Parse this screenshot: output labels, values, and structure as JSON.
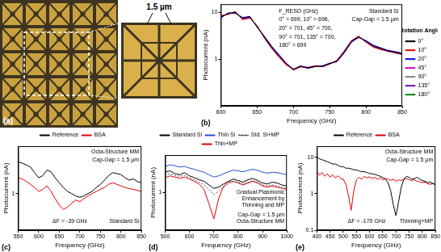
{
  "panel_a": {
    "label": "(a)",
    "scale_label": "1.5 µm"
  },
  "chart_data": [
    {
      "type": "line",
      "panel_label": "(b)",
      "x_label": "Frequency (GHz)",
      "y_label": "Photocurrent (nA)",
      "log": "y",
      "grid": false,
      "legend": "right",
      "legend_title": "Rotation Angle",
      "xlim": [
        600,
        850
      ],
      "xticks": [
        600,
        650,
        700,
        750,
        800,
        850
      ],
      "ylim": [
        0.1,
        15
      ],
      "yticks": [
        1,
        10
      ],
      "annotations": [
        "Standard Si",
        "Cap-Gap = 1.5 µm",
        "F_RESO (GHz)",
        "0° = 699, 10° = 696,",
        "20° = 701, 45° = 700,",
        "90° = 701, 135° = 700,",
        "180° = 699"
      ],
      "x": [
        600,
        610,
        620,
        630,
        640,
        650,
        660,
        670,
        680,
        690,
        700,
        710,
        720,
        730,
        740,
        750,
        760,
        770,
        780,
        790,
        800,
        810,
        820,
        830,
        840,
        850
      ],
      "series": [
        {
          "name": "0°",
          "color": "#000000",
          "values": [
            8,
            9.5,
            10,
            7.5,
            8,
            5,
            3,
            1.8,
            1.2,
            0.8,
            0.6,
            0.7,
            0.65,
            0.7,
            0.7,
            0.8,
            0.9,
            1.4,
            2.4,
            3.0,
            2.4,
            1.9,
            1.7,
            1.5,
            1.4,
            1.3
          ]
        },
        {
          "name": "10°",
          "color": "#e00000",
          "values": [
            8.5,
            9,
            10.5,
            7,
            7.5,
            5.2,
            2.8,
            1.7,
            1.1,
            0.75,
            0.62,
            0.68,
            0.66,
            0.72,
            0.68,
            0.78,
            0.95,
            1.5,
            2.5,
            3.1,
            2.3,
            1.8,
            1.6,
            1.5,
            1.35,
            1.25
          ]
        },
        {
          "name": "20°",
          "color": "#0000e0",
          "values": [
            7.5,
            9.8,
            9.5,
            7.8,
            8.2,
            4.8,
            3.1,
            1.9,
            1.25,
            0.82,
            0.6,
            0.72,
            0.63,
            0.69,
            0.72,
            0.82,
            0.88,
            1.35,
            2.3,
            2.9,
            2.5,
            2.0,
            1.75,
            1.55,
            1.45,
            1.35
          ]
        },
        {
          "name": "45°",
          "color": "#cc00cc",
          "values": [
            8.2,
            9.2,
            10.2,
            7.2,
            7.8,
            5.1,
            2.9,
            1.75,
            1.15,
            0.78,
            0.58,
            0.69,
            0.67,
            0.71,
            0.69,
            0.79,
            0.92,
            1.45,
            2.45,
            3.05,
            2.35,
            1.85,
            1.65,
            1.45,
            1.38,
            1.28
          ]
        },
        {
          "name": "90°",
          "color": "#808080",
          "values": [
            7.8,
            9.6,
            9.8,
            7.6,
            8.1,
            4.9,
            3.05,
            1.85,
            1.22,
            0.81,
            0.61,
            0.71,
            0.64,
            0.7,
            0.71,
            0.81,
            0.89,
            1.38,
            2.35,
            2.95,
            2.45,
            1.95,
            1.72,
            1.52,
            1.42,
            1.32
          ]
        },
        {
          "name": "135°",
          "color": "#6a0dad",
          "values": [
            8.3,
            9.3,
            10.1,
            7.3,
            7.9,
            5.0,
            2.95,
            1.78,
            1.18,
            0.79,
            0.59,
            0.7,
            0.66,
            0.7,
            0.7,
            0.8,
            0.91,
            1.42,
            2.42,
            3.02,
            2.38,
            1.88,
            1.68,
            1.48,
            1.4,
            1.3
          ]
        },
        {
          "name": "180°",
          "color": "#008000",
          "values": [
            8.0,
            9.4,
            10.0,
            7.4,
            8.0,
            5.0,
            3.0,
            1.8,
            1.2,
            0.8,
            0.6,
            0.7,
            0.65,
            0.7,
            0.7,
            0.8,
            0.9,
            1.4,
            2.4,
            3.0,
            2.4,
            1.9,
            1.7,
            1.5,
            1.4,
            1.3
          ]
        }
      ]
    },
    {
      "type": "line",
      "panel_label": "(c)",
      "x_label": "Frequency (GHz)",
      "y_label": "Photocurrent (nA)",
      "log": "y",
      "grid": false,
      "legend": "top",
      "xlim": [
        550,
        850
      ],
      "xticks": [
        550,
        600,
        650,
        700,
        750,
        800,
        850
      ],
      "ylim": [
        0.2,
        8
      ],
      "yticks": [
        1
      ],
      "annotations": [
        "Octa-Structure MM",
        "Cap-Gap = 1.5 µm",
        "ΔF = -39 GHz",
        "Standard Si"
      ],
      "x": [
        550,
        560,
        570,
        580,
        590,
        600,
        610,
        620,
        630,
        640,
        650,
        660,
        670,
        680,
        690,
        700,
        710,
        720,
        730,
        740,
        750,
        760,
        770,
        780,
        790,
        800,
        810,
        820,
        830,
        840,
        850
      ],
      "series": [
        {
          "name": "Reference",
          "color": "#000000",
          "values": [
            4,
            3.8,
            3.5,
            3.2,
            2.5,
            2.0,
            2.2,
            2.8,
            2.6,
            2.0,
            1.6,
            1.3,
            1.1,
            1.0,
            0.9,
            0.85,
            0.9,
            1.0,
            1.1,
            1.3,
            1.5,
            1.8,
            2.2,
            2.5,
            2.4,
            2.3,
            2.0,
            1.8,
            1.9,
            1.7,
            1.6
          ]
        },
        {
          "name": "BSA",
          "color": "#e00000",
          "values": [
            2.0,
            1.9,
            1.7,
            1.5,
            1.3,
            1.1,
            1.2,
            1.4,
            1.1,
            0.8,
            0.6,
            0.5,
            0.55,
            0.65,
            0.75,
            0.7,
            0.8,
            0.9,
            1.0,
            1.1,
            1.2,
            1.3,
            1.5,
            1.6,
            1.5,
            1.4,
            1.3,
            1.25,
            1.2,
            1.15,
            1.1
          ]
        }
      ]
    },
    {
      "type": "line",
      "panel_label": "(d)",
      "x_label": "Frequency (GHz)",
      "y_label": "Photocurrent (nA)",
      "log": "y",
      "grid": false,
      "legend": "top",
      "xlim": [
        500,
        1000
      ],
      "xticks": [
        500,
        600,
        700,
        800,
        900,
        1000
      ],
      "ylim": [
        0.1,
        10
      ],
      "yticks": [
        1
      ],
      "annotations": [
        "Gradual Plasmonic Enhancement by Thinning and MP",
        "Cap-Gap = 1.5 µm",
        "Octa-Structure MM"
      ],
      "x": [
        500,
        520,
        540,
        560,
        580,
        600,
        620,
        640,
        660,
        680,
        700,
        720,
        740,
        760,
        780,
        800,
        820,
        840,
        860,
        880,
        900,
        920,
        940,
        960,
        980,
        1000
      ],
      "series": [
        {
          "name": "Standard Si",
          "color": "#000000",
          "line_style": "solid",
          "values": [
            3.5,
            3.8,
            3.2,
            3.0,
            3.4,
            2.8,
            2.5,
            2.2,
            2.0,
            1.6,
            1.3,
            1.4,
            1.7,
            2.0,
            2.3,
            2.1,
            1.9,
            2.2,
            2.4,
            2.1,
            1.8,
            1.7,
            1.9,
            1.8,
            1.6,
            1.5
          ]
        },
        {
          "name": "Thin Si",
          "color": "#1f4fd8",
          "line_style": "solid",
          "values": [
            5,
            5.5,
            5.2,
            4.8,
            5.0,
            4.5,
            4.2,
            3.8,
            3.5,
            3.0,
            2.6,
            2.8,
            3.2,
            3.6,
            4.0,
            3.8,
            3.6,
            3.9,
            4.2,
            3.9,
            3.5,
            3.3,
            3.5,
            3.4,
            3.2,
            3.0
          ]
        },
        {
          "name": "Std. Si+MP",
          "color": "#555555",
          "line_style": "dotted",
          "values": [
            3,
            3.2,
            2.9,
            2.7,
            2.9,
            2.5,
            2.2,
            1.9,
            1.6,
            1.2,
            0.9,
            1.1,
            1.4,
            1.7,
            2.0,
            1.9,
            1.7,
            1.9,
            2.1,
            1.9,
            1.6,
            1.5,
            1.6,
            1.5,
            1.4,
            1.3
          ]
        },
        {
          "name": "Thin+MP",
          "color": "#e00000",
          "line_style": "solid",
          "values": [
            2.5,
            2.8,
            2.6,
            2.4,
            2.6,
            2.3,
            2.0,
            1.7,
            1.2,
            0.5,
            0.2,
            0.7,
            1.5,
            1.9,
            2.0,
            1.8,
            1.6,
            1.8,
            2.0,
            1.8,
            1.5,
            1.4,
            1.5,
            1.4,
            1.3,
            1.2
          ]
        }
      ]
    },
    {
      "type": "line",
      "panel_label": "(e)",
      "x_label": "Frequency (GHz)",
      "y_label": "Photocurrent (nA)",
      "log": "y",
      "grid": false,
      "legend": "top",
      "xlim": [
        400,
        850
      ],
      "xticks": [
        400,
        450,
        500,
        550,
        600,
        650,
        700,
        750,
        800,
        850
      ],
      "ylim": [
        0.1,
        20
      ],
      "yticks": [
        0.1,
        1,
        10
      ],
      "annotations": [
        "Octa-Structure MM",
        "Cap-Gap = 1.5 µm",
        "ΔF = -170 GHz",
        "Thinning+MP"
      ],
      "x": [
        400,
        410,
        420,
        430,
        440,
        450,
        460,
        470,
        480,
        490,
        500,
        510,
        520,
        530,
        540,
        550,
        560,
        570,
        580,
        590,
        600,
        610,
        620,
        630,
        640,
        650,
        660,
        670,
        680,
        690,
        700,
        710,
        720,
        730,
        740,
        750,
        760,
        770,
        780,
        790,
        800,
        810,
        820,
        830,
        840,
        850
      ],
      "series": [
        {
          "name": "Reference",
          "color": "#000000",
          "values": [
            10,
            9,
            8.5,
            8,
            7.5,
            7,
            6.5,
            6.5,
            6,
            5.5,
            5.5,
            5,
            5,
            4.8,
            4.5,
            4.5,
            4.2,
            4,
            4,
            3.8,
            3.6,
            3.5,
            3.4,
            3.2,
            3,
            2.8,
            2.5,
            2,
            1.2,
            0.5,
            0.25,
            0.6,
            1.5,
            2.5,
            3,
            2.8,
            2.5,
            2.6,
            2.8,
            2.5,
            2.3,
            2.2,
            2.0,
            2.1,
            1.9,
            1.8
          ]
        },
        {
          "name": "BSA",
          "color": "#e00000",
          "values": [
            4,
            3.2,
            3.8,
            3,
            3.5,
            2.8,
            3.3,
            2.7,
            3.1,
            2.6,
            2.5,
            1.8,
            0.9,
            0.35,
            1.2,
            2.4,
            2.8,
            2.5,
            3,
            2.7,
            2.9,
            2.6,
            2.8,
            2.5,
            2.7,
            2.4,
            2.6,
            2.5,
            2.3,
            2.5,
            2.2,
            2.4,
            2.3,
            2.5,
            2.6,
            2.4,
            2.3,
            2.4,
            2.2,
            2.1,
            2.0,
            2.1,
            1.9,
            1.8,
            1.9,
            1.7
          ]
        }
      ]
    }
  ]
}
